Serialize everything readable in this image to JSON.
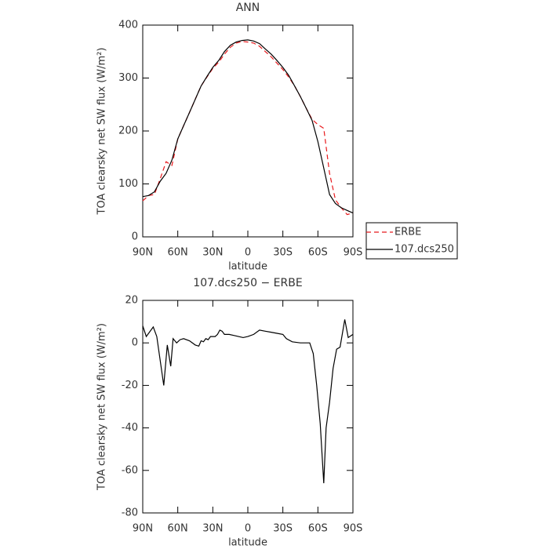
{
  "chart_data": [
    {
      "type": "line",
      "title": "ANN",
      "xlabel": "latitude",
      "ylabel": "TOA clearsky net SW flux (W/m²)",
      "xlim": [
        90,
        -90
      ],
      "xticks": [
        {
          "value": 90,
          "label": "90N"
        },
        {
          "value": 60,
          "label": "60N"
        },
        {
          "value": 30,
          "label": "30N"
        },
        0,
        {
          "value": -30,
          "label": "30S"
        },
        {
          "value": -60,
          "label": "60S"
        },
        {
          "value": -90,
          "label": "90S"
        }
      ],
      "ylim": [
        0,
        400
      ],
      "yticks": [
        0,
        100,
        200,
        300,
        400
      ],
      "legend": "right",
      "x": [
        90,
        85,
        80,
        75,
        70,
        65,
        60,
        55,
        50,
        45,
        40,
        35,
        30,
        25,
        20,
        15,
        10,
        5,
        0,
        -5,
        -10,
        -15,
        -20,
        -25,
        -30,
        -35,
        -40,
        -45,
        -50,
        -55,
        -60,
        -65,
        -70,
        -75,
        -80,
        -85,
        -90
      ],
      "series": [
        {
          "name": "ERBE",
          "color": "#e8191c",
          "linestyle": "dashed",
          "values": [
            68,
            78,
            80,
            110,
            142,
            135,
            185,
            210,
            235,
            260,
            285,
            302,
            318,
            330,
            345,
            358,
            366,
            369,
            368,
            366,
            360,
            350,
            340,
            328,
            316,
            302,
            285,
            265,
            243,
            222,
            212,
            205,
            120,
            70,
            55,
            42,
            45
          ]
        },
        {
          "name": "107.dcs250",
          "color": "#000000",
          "linestyle": "solid",
          "values": [
            76,
            78,
            85,
            105,
            120,
            145,
            185,
            210,
            235,
            260,
            285,
            303,
            320,
            333,
            350,
            362,
            368,
            371,
            372,
            370,
            365,
            355,
            345,
            333,
            320,
            305,
            285,
            265,
            243,
            220,
            180,
            130,
            80,
            63,
            55,
            50,
            45
          ]
        }
      ]
    },
    {
      "type": "line",
      "title": "107.dcs250 − ERBE",
      "xlabel": "latitude",
      "ylabel": "TOA clearsky net SW flux (W/m²)",
      "xlim": [
        90,
        -90
      ],
      "xticks": [
        {
          "value": 90,
          "label": "90N"
        },
        {
          "value": 60,
          "label": "60N"
        },
        {
          "value": 30,
          "label": "30N"
        },
        0,
        {
          "value": -30,
          "label": "30S"
        },
        {
          "value": -60,
          "label": "60S"
        },
        {
          "value": -90,
          "label": "90S"
        }
      ],
      "ylim": [
        -80,
        20
      ],
      "yticks": [
        -80,
        -60,
        -40,
        -20,
        0,
        20
      ],
      "x": [
        90,
        87,
        81,
        78,
        72,
        69,
        66,
        64,
        61,
        58,
        55,
        50,
        45,
        42,
        40,
        38,
        36,
        34,
        32,
        28,
        26,
        24,
        22,
        20,
        16,
        12,
        8,
        4,
        0,
        -5,
        -10,
        -15,
        -20,
        -25,
        -30,
        -33,
        -38,
        -45,
        -50,
        -53,
        -56,
        -59,
        -62,
        -65,
        -67,
        -70,
        -73,
        -76,
        -79,
        -83,
        -86,
        -90
      ],
      "series": [
        {
          "color": "#000000",
          "linestyle": "solid",
          "values": [
            8,
            3,
            7.5,
            3,
            -20,
            -1,
            -11,
            2,
            0,
            1.5,
            2,
            1,
            -1,
            -1.5,
            1,
            0.5,
            2,
            1.5,
            3,
            3,
            4,
            6,
            5.5,
            4,
            4,
            3.5,
            3,
            2.5,
            3,
            4,
            6,
            5.5,
            5,
            4.5,
            4,
            2,
            0.5,
            0,
            0,
            0,
            -5,
            -20,
            -38,
            -66,
            -40,
            -28,
            -12,
            -3,
            -2,
            11,
            2.5,
            4
          ]
        }
      ]
    }
  ]
}
